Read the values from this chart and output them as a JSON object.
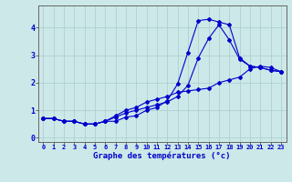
{
  "xlabel": "Graphe des températures (°c)",
  "xlim": [
    -0.5,
    23.5
  ],
  "ylim": [
    -0.15,
    4.8
  ],
  "xticks": [
    0,
    1,
    2,
    3,
    4,
    5,
    6,
    7,
    8,
    9,
    10,
    11,
    12,
    13,
    14,
    15,
    16,
    17,
    18,
    19,
    20,
    21,
    22,
    23
  ],
  "yticks": [
    0,
    1,
    2,
    3,
    4
  ],
  "background_color": "#cce8e8",
  "grid_color": "#aacccc",
  "line_color": "#0000cc",
  "line1_x": [
    0,
    1,
    2,
    3,
    4,
    5,
    6,
    7,
    8,
    9,
    10,
    11,
    12,
    13,
    14,
    15,
    16,
    17,
    18,
    19,
    20,
    21,
    22,
    23
  ],
  "line1_y": [
    0.7,
    0.7,
    0.6,
    0.6,
    0.5,
    0.5,
    0.6,
    0.6,
    0.75,
    0.8,
    1.0,
    1.1,
    1.35,
    1.95,
    3.1,
    4.25,
    4.3,
    4.2,
    4.1,
    2.9,
    2.6,
    2.55,
    2.45,
    2.4
  ],
  "line2_x": [
    0,
    1,
    2,
    3,
    4,
    5,
    6,
    7,
    8,
    9,
    10,
    11,
    12,
    13,
    14,
    15,
    16,
    17,
    18,
    19,
    20,
    21,
    22,
    23
  ],
  "line2_y": [
    0.7,
    0.7,
    0.6,
    0.6,
    0.5,
    0.5,
    0.6,
    0.8,
    1.0,
    1.1,
    1.3,
    1.4,
    1.5,
    1.65,
    1.7,
    1.75,
    1.8,
    2.0,
    2.1,
    2.2,
    2.5,
    2.6,
    2.55,
    2.4
  ],
  "line3_x": [
    0,
    1,
    2,
    3,
    4,
    5,
    6,
    7,
    8,
    9,
    10,
    11,
    12,
    13,
    14,
    15,
    16,
    17,
    18,
    19,
    20,
    21,
    22,
    23
  ],
  "line3_y": [
    0.7,
    0.7,
    0.6,
    0.6,
    0.5,
    0.5,
    0.6,
    0.75,
    0.9,
    1.0,
    1.1,
    1.2,
    1.3,
    1.5,
    1.9,
    2.9,
    3.6,
    4.1,
    3.55,
    2.85,
    2.6,
    2.55,
    2.45,
    2.4
  ]
}
